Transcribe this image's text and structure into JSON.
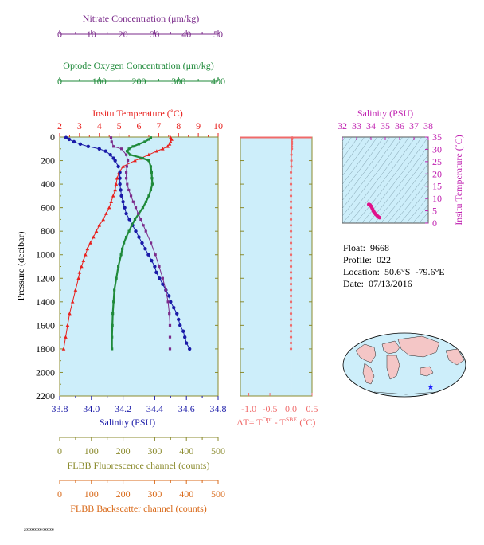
{
  "info": {
    "float": "Float:  9668",
    "profile": "Profile:  022",
    "location": "Location:  50.6°S  -79.6°E",
    "date": "Date:  07/13/2016"
  },
  "footer_tiny": "Z0000000000 0000000",
  "colors": {
    "nitrate": "#7b2b8b",
    "oxygen": "#1f8a3a",
    "temperature": "#e8201d",
    "salinity": "#1a1aa8",
    "delta": "#f06a6a",
    "fluorescence": "#8b8b2e",
    "backscatter": "#d96a1a",
    "plot_bg": "#cdeefa",
    "ts_points": "#e0128a"
  },
  "chart_data": [
    {
      "type": "line",
      "panel": "main-profile",
      "ylabel": "Pressure (decibar)",
      "y_ticks": [
        "0",
        "200",
        "400",
        "600",
        "800",
        "1000",
        "1200",
        "1400",
        "1600",
        "1800",
        "2000",
        "2200"
      ],
      "ylim": [
        2200,
        0
      ],
      "axes": [
        {
          "key": "nitrate",
          "label": "Nitrate Concentration (μm/kg)",
          "ticks": [
            "0",
            "10",
            "20",
            "30",
            "40",
            "50"
          ],
          "range": [
            0,
            50
          ]
        },
        {
          "key": "oxygen",
          "label": "Optode Oxygen Concentration (μm/kg)",
          "ticks": [
            "0",
            "100",
            "200",
            "300",
            "400"
          ],
          "range": [
            0,
            400
          ]
        },
        {
          "key": "temperature",
          "label": "Insitu Temperature (˚C)",
          "ticks": [
            "2",
            "3",
            "4",
            "5",
            "6",
            "7",
            "8",
            "9",
            "10"
          ],
          "range": [
            2,
            10
          ]
        },
        {
          "key": "salinity",
          "label": "Salinity (PSU)",
          "ticks": [
            "33.8",
            "34.0",
            "34.2",
            "34.4",
            "34.6",
            "34.8"
          ],
          "range": [
            33.8,
            34.8
          ]
        },
        {
          "key": "fluorescence",
          "label": "FLBB Fluorescence channel (counts)",
          "ticks": [
            "0",
            "100",
            "200",
            "300",
            "400",
            "500"
          ],
          "range": [
            0,
            500
          ]
        },
        {
          "key": "backscatter",
          "label": "FLBB Backscatter channel (counts)",
          "ticks": [
            "0",
            "100",
            "200",
            "300",
            "400",
            "500"
          ],
          "range": [
            0,
            500
          ]
        }
      ],
      "series": [
        {
          "key": "temperature",
          "marker": "triangle",
          "pressure": [
            5,
            20,
            40,
            60,
            80,
            100,
            120,
            150,
            180,
            200,
            250,
            300,
            350,
            400,
            450,
            500,
            550,
            600,
            650,
            700,
            750,
            800,
            850,
            900,
            950,
            1000,
            1050,
            1100,
            1150,
            1200,
            1300,
            1400,
            1500,
            1600,
            1700,
            1800
          ],
          "values": [
            7.6,
            7.65,
            7.6,
            7.55,
            7.45,
            7.2,
            6.9,
            6.5,
            6.1,
            5.8,
            5.2,
            5.0,
            4.9,
            4.85,
            4.8,
            4.7,
            4.6,
            4.5,
            4.35,
            4.2,
            4.0,
            3.85,
            3.7,
            3.55,
            3.4,
            3.3,
            3.2,
            3.1,
            3.0,
            2.95,
            2.8,
            2.65,
            2.5,
            2.4,
            2.3,
            2.2
          ]
        },
        {
          "key": "salinity",
          "marker": "circle",
          "pressure": [
            5,
            20,
            40,
            60,
            80,
            100,
            120,
            150,
            180,
            200,
            250,
            300,
            350,
            400,
            450,
            500,
            550,
            600,
            650,
            700,
            750,
            800,
            850,
            900,
            950,
            1000,
            1050,
            1100,
            1150,
            1200,
            1250,
            1300,
            1350,
            1400,
            1450,
            1500,
            1550,
            1600,
            1650,
            1700,
            1750,
            1800
          ],
          "values": [
            33.84,
            33.86,
            33.89,
            33.93,
            33.98,
            34.05,
            34.09,
            34.12,
            34.14,
            34.15,
            34.17,
            34.18,
            34.18,
            34.18,
            34.185,
            34.19,
            34.2,
            34.21,
            34.22,
            34.24,
            34.26,
            34.28,
            34.3,
            34.32,
            34.34,
            34.36,
            34.38,
            34.4,
            34.41,
            34.43,
            34.45,
            34.47,
            34.49,
            34.5,
            34.52,
            34.54,
            34.55,
            34.56,
            34.58,
            34.59,
            34.6,
            34.62
          ]
        },
        {
          "key": "oxygen",
          "marker": "square",
          "pressure": [
            5,
            20,
            40,
            60,
            80,
            100,
            120,
            150,
            180,
            200,
            250,
            300,
            350,
            400,
            450,
            500,
            550,
            600,
            650,
            700,
            750,
            800,
            850,
            900,
            950,
            1000,
            1100,
            1200,
            1300,
            1400,
            1500,
            1600,
            1700,
            1800
          ],
          "values": [
            230,
            225,
            215,
            200,
            185,
            175,
            170,
            178,
            210,
            225,
            230,
            232,
            233,
            234,
            230,
            225,
            218,
            210,
            200,
            190,
            182,
            175,
            168,
            162,
            158,
            155,
            148,
            143,
            138,
            136,
            134,
            133,
            132,
            132
          ]
        },
        {
          "key": "nitrate",
          "marker": "square",
          "pressure": [
            5,
            40,
            80,
            100,
            150,
            200,
            250,
            300,
            350,
            400,
            450,
            500,
            550,
            600,
            650,
            700,
            750,
            800,
            900,
            1000,
            1100,
            1200,
            1300,
            1400,
            1500,
            1600,
            1700,
            1800
          ],
          "values": [
            16.2,
            16.4,
            17.0,
            19.5,
            21.0,
            21.5,
            21.2,
            21.0,
            21.0,
            21.3,
            21.8,
            22.5,
            23.2,
            24.0,
            24.8,
            25.6,
            26.4,
            27.2,
            28.8,
            30.2,
            31.4,
            32.5,
            33.5,
            34.2,
            34.6,
            34.8,
            34.8,
            34.8
          ]
        }
      ]
    },
    {
      "type": "scatter",
      "panel": "delta-t",
      "xlabel": "ΔT= T",
      "xlabel_sup1": "Opt",
      "xlabel_mid": " - T",
      "xlabel_sup2": "SBE",
      "xlabel_tail": " (˚C)",
      "x_ticks": [
        "-1.0",
        "-0.5",
        "0.0",
        "0.5"
      ],
      "xlim": [
        -1.2,
        0.5
      ],
      "pressure": [
        5,
        20,
        40,
        60,
        80,
        100,
        150,
        200,
        250,
        300,
        350,
        400,
        450,
        500,
        550,
        600,
        650,
        700,
        750,
        800,
        850,
        900,
        950,
        1000,
        1050,
        1100,
        1150,
        1200,
        1250,
        1300,
        1350,
        1400,
        1450,
        1500,
        1550,
        1600,
        1650,
        1700,
        1750,
        1800
      ],
      "values": [
        0.03,
        0.02,
        0.02,
        0.02,
        0.02,
        0.02,
        0.01,
        0.01,
        0.01,
        0.0,
        0.0,
        0.0,
        0.0,
        0.0,
        0.0,
        0.0,
        0.0,
        0.0,
        0.0,
        0.0,
        0.0,
        0.0,
        0.0,
        0.0,
        0.0,
        0.0,
        0.0,
        0.0,
        0.0,
        0.0,
        0.0,
        0.0,
        0.0,
        0.0,
        0.0,
        0.0,
        0.0,
        0.0,
        0.0,
        0.0
      ]
    },
    {
      "type": "scatter",
      "panel": "ts-diagram",
      "title": "Salinity (PSU)",
      "ylabel": "Insitu Temperature (˚C)",
      "x_ticks": [
        "32",
        "33",
        "34",
        "35",
        "36",
        "37",
        "38"
      ],
      "y_ticks": [
        "0",
        "5",
        "10",
        "15",
        "20",
        "25",
        "30",
        "35"
      ],
      "xlim": [
        32,
        38
      ],
      "ylim": [
        0,
        35
      ],
      "salinity": [
        33.84,
        33.86,
        33.9,
        33.95,
        34.0,
        34.05,
        34.1,
        34.15,
        34.17,
        34.18,
        34.2,
        34.25,
        34.3,
        34.35,
        34.4,
        34.45,
        34.5,
        34.55,
        34.6
      ],
      "temperature": [
        7.6,
        7.6,
        7.5,
        7.3,
        6.9,
        6.4,
        5.8,
        5.2,
        4.9,
        4.8,
        4.6,
        4.2,
        3.8,
        3.5,
        3.2,
        2.9,
        2.6,
        2.4,
        2.2
      ]
    }
  ]
}
